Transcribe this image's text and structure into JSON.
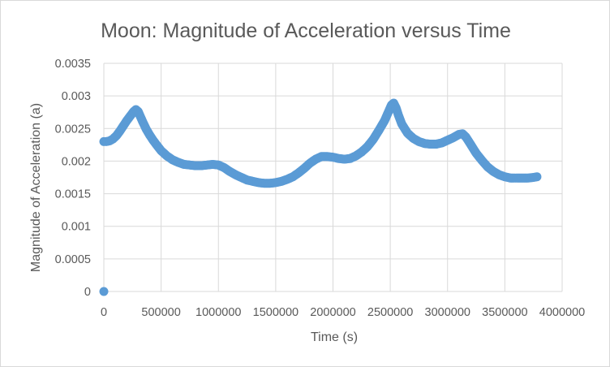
{
  "chart_data": {
    "type": "scatter",
    "title": "Moon: Magnitude of Acceleration versus Time",
    "xlabel": "Time (s)",
    "ylabel": "Magnitude of Acceleration (a)",
    "xlim": [
      0,
      4000000
    ],
    "ylim": [
      0,
      0.0035
    ],
    "x_ticks": [
      "0",
      "500000",
      "1000000",
      "1500000",
      "2000000",
      "2500000",
      "3000000",
      "3500000",
      "4000000"
    ],
    "y_ticks": [
      "0",
      "0.0005",
      "0.001",
      "0.0015",
      "0.002",
      "0.0025",
      "0.003",
      "0.0035"
    ],
    "grid": true,
    "legend": "none",
    "marker_color": "#5b9bd5",
    "series": [
      {
        "x": [
          0,
          20000,
          50000,
          80000,
          110000,
          140000,
          170000,
          200000,
          230000,
          260000,
          280000,
          300000,
          320000,
          340000,
          370000,
          400000,
          430000,
          460000,
          500000,
          550000,
          600000,
          650000,
          700000,
          750000,
          800000,
          850000,
          900000,
          950000,
          1000000,
          1050000,
          1100000,
          1150000,
          1200000,
          1250000,
          1300000,
          1350000,
          1400000,
          1450000,
          1500000,
          1550000,
          1600000,
          1650000,
          1700000,
          1750000,
          1800000,
          1850000,
          1900000,
          1950000,
          2000000,
          2050000,
          2100000,
          2150000,
          2200000,
          2250000,
          2300000,
          2350000,
          2400000,
          2450000,
          2480000,
          2510000,
          2530000,
          2550000,
          2570000,
          2600000,
          2650000,
          2700000,
          2750000,
          2800000,
          2850000,
          2900000,
          2950000,
          3000000,
          3050000,
          3100000,
          3130000,
          3160000,
          3200000,
          3250000,
          3300000,
          3350000,
          3400000,
          3450000,
          3500000,
          3550000,
          3600000,
          3650000,
          3700000,
          3750000,
          3780000
        ],
        "y": [
          0.0023,
          0.0023,
          0.00231,
          0.00234,
          0.00239,
          0.00246,
          0.00254,
          0.00262,
          0.00269,
          0.00276,
          0.00279,
          0.00276,
          0.00268,
          0.0026,
          0.00249,
          0.0024,
          0.00232,
          0.00225,
          0.00216,
          0.00208,
          0.00202,
          0.00198,
          0.00195,
          0.00194,
          0.00193,
          0.00193,
          0.00194,
          0.00195,
          0.00194,
          0.0019,
          0.00184,
          0.00179,
          0.00175,
          0.00171,
          0.00169,
          0.00167,
          0.00166,
          0.00166,
          0.00167,
          0.00169,
          0.00172,
          0.00176,
          0.00182,
          0.00189,
          0.00197,
          0.00203,
          0.00207,
          0.00207,
          0.00206,
          0.00204,
          0.00203,
          0.00204,
          0.00208,
          0.00214,
          0.00222,
          0.00233,
          0.00247,
          0.00262,
          0.00274,
          0.00286,
          0.00289,
          0.00282,
          0.00271,
          0.00257,
          0.00243,
          0.00235,
          0.0023,
          0.00227,
          0.00226,
          0.00226,
          0.00228,
          0.00232,
          0.00236,
          0.00241,
          0.00242,
          0.00237,
          0.00226,
          0.00212,
          0.00201,
          0.00191,
          0.00184,
          0.00179,
          0.00176,
          0.00174,
          0.00174,
          0.00174,
          0.00174,
          0.00175,
          0.00176
        ]
      },
      {
        "x": [
          0
        ],
        "y": [
          0
        ]
      }
    ]
  }
}
